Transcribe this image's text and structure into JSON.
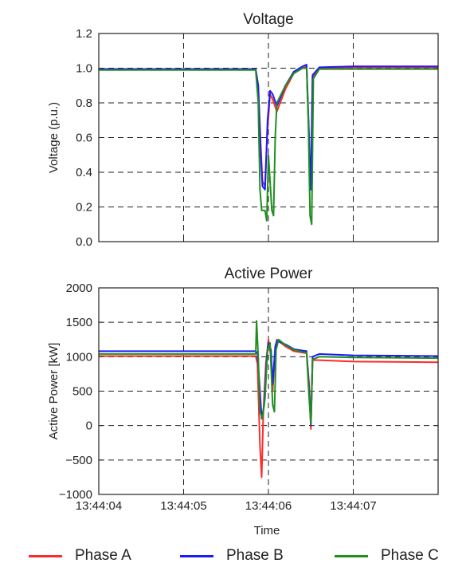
{
  "chart_data": [
    {
      "type": "line",
      "title": "Voltage",
      "xlabel": "",
      "ylabel": "Voltage (p.u.)",
      "ylim": [
        0.0,
        1.2
      ],
      "yticks": [
        "0.0",
        "0.2",
        "0.4",
        "0.6",
        "0.8",
        "1.0",
        "1.2"
      ],
      "xticks": [
        "13:44:04",
        "13:44:05",
        "13:44:06",
        "13:44:07"
      ],
      "grid": true,
      "series": [
        {
          "name": "Phase A",
          "color": "#ff2a2a",
          "points": [
            [
              0.0,
              0.995
            ],
            [
              1.0,
              0.995
            ],
            [
              1.85,
              0.995
            ],
            [
              1.88,
              0.9
            ],
            [
              1.91,
              0.55
            ],
            [
              1.93,
              0.35
            ],
            [
              1.96,
              0.32
            ],
            [
              1.99,
              0.65
            ],
            [
              2.02,
              0.85
            ],
            [
              2.05,
              0.82
            ],
            [
              2.1,
              0.75
            ],
            [
              2.2,
              0.88
            ],
            [
              2.3,
              0.97
            ],
            [
              2.4,
              1.0
            ],
            [
              2.45,
              1.01
            ],
            [
              2.48,
              0.55
            ],
            [
              2.5,
              0.3
            ],
            [
              2.52,
              0.95
            ],
            [
              2.6,
              1.0
            ],
            [
              3.0,
              1.005
            ],
            [
              4.0,
              1.005
            ]
          ]
        },
        {
          "name": "Phase B",
          "color": "#1a1aff",
          "points": [
            [
              0.0,
              0.995
            ],
            [
              1.0,
              0.995
            ],
            [
              1.85,
              0.995
            ],
            [
              1.88,
              0.9
            ],
            [
              1.91,
              0.5
            ],
            [
              1.93,
              0.32
            ],
            [
              1.96,
              0.3
            ],
            [
              1.99,
              0.7
            ],
            [
              2.02,
              0.87
            ],
            [
              2.05,
              0.85
            ],
            [
              2.1,
              0.78
            ],
            [
              2.2,
              0.9
            ],
            [
              2.3,
              0.98
            ],
            [
              2.4,
              1.01
            ],
            [
              2.45,
              1.02
            ],
            [
              2.48,
              0.6
            ],
            [
              2.5,
              0.3
            ],
            [
              2.52,
              0.96
            ],
            [
              2.6,
              1.005
            ],
            [
              3.0,
              1.01
            ],
            [
              4.0,
              1.01
            ]
          ]
        },
        {
          "name": "Phase C",
          "color": "#1f8f1f",
          "points": [
            [
              0.0,
              0.99
            ],
            [
              1.0,
              0.99
            ],
            [
              1.85,
              0.99
            ],
            [
              1.88,
              0.8
            ],
            [
              1.9,
              0.3
            ],
            [
              1.92,
              0.18
            ],
            [
              1.96,
              0.18
            ],
            [
              1.98,
              0.12
            ],
            [
              2.0,
              0.5
            ],
            [
              2.04,
              0.18
            ],
            [
              2.06,
              0.15
            ],
            [
              2.08,
              0.6
            ],
            [
              2.1,
              0.8
            ],
            [
              2.2,
              0.9
            ],
            [
              2.3,
              0.97
            ],
            [
              2.4,
              1.0
            ],
            [
              2.45,
              1.0
            ],
            [
              2.47,
              0.7
            ],
            [
              2.49,
              0.15
            ],
            [
              2.51,
              0.1
            ],
            [
              2.53,
              0.94
            ],
            [
              2.6,
              0.995
            ],
            [
              3.0,
              0.995
            ],
            [
              4.0,
              0.995
            ]
          ]
        }
      ]
    },
    {
      "type": "line",
      "title": "Active Power",
      "xlabel": "Time",
      "ylabel": "Active Power [kW]",
      "ylim": [
        -1000,
        2000
      ],
      "yticks": [
        "−1000",
        "−500",
        "0",
        "500",
        "1000",
        "1500",
        "2000"
      ],
      "xticks": [
        "13:44:04",
        "13:44:05",
        "13:44:06",
        "13:44:07"
      ],
      "grid": true,
      "series": [
        {
          "name": "Phase A",
          "color": "#ff2a2a",
          "points": [
            [
              0.0,
              1010
            ],
            [
              1.0,
              1010
            ],
            [
              1.85,
              1010
            ],
            [
              1.87,
              900
            ],
            [
              1.9,
              -300
            ],
            [
              1.92,
              -750
            ],
            [
              1.94,
              200
            ],
            [
              1.97,
              900
            ],
            [
              2.0,
              1250
            ],
            [
              2.03,
              1000
            ],
            [
              2.05,
              500
            ],
            [
              2.08,
              1100
            ],
            [
              2.1,
              1250
            ],
            [
              2.2,
              1150
            ],
            [
              2.3,
              1080
            ],
            [
              2.4,
              1060
            ],
            [
              2.45,
              1050
            ],
            [
              2.48,
              600
            ],
            [
              2.5,
              -50
            ],
            [
              2.52,
              950
            ],
            [
              2.6,
              950
            ],
            [
              3.0,
              930
            ],
            [
              4.0,
              920
            ]
          ]
        },
        {
          "name": "Phase B",
          "color": "#1a1aff",
          "points": [
            [
              0.0,
              1080
            ],
            [
              1.0,
              1080
            ],
            [
              1.85,
              1080
            ],
            [
              1.87,
              1050
            ],
            [
              1.9,
              500
            ],
            [
              1.92,
              100
            ],
            [
              1.95,
              300
            ],
            [
              1.98,
              1000
            ],
            [
              2.0,
              1200
            ],
            [
              2.03,
              1100
            ],
            [
              2.05,
              600
            ],
            [
              2.08,
              1150
            ],
            [
              2.1,
              1230
            ],
            [
              2.2,
              1180
            ],
            [
              2.3,
              1110
            ],
            [
              2.4,
              1090
            ],
            [
              2.45,
              1080
            ],
            [
              2.48,
              500
            ],
            [
              2.5,
              0
            ],
            [
              2.52,
              1000
            ],
            [
              2.6,
              1040
            ],
            [
              3.0,
              1020
            ],
            [
              4.0,
              1010
            ]
          ]
        },
        {
          "name": "Phase C",
          "color": "#1f8f1f",
          "points": [
            [
              0.0,
              1040
            ],
            [
              1.0,
              1040
            ],
            [
              1.85,
              1040
            ],
            [
              1.86,
              1520
            ],
            [
              1.88,
              1000
            ],
            [
              1.9,
              200
            ],
            [
              1.93,
              100
            ],
            [
              1.96,
              400
            ],
            [
              1.99,
              1100
            ],
            [
              2.02,
              1200
            ],
            [
              2.05,
              300
            ],
            [
              2.07,
              200
            ],
            [
              2.09,
              1100
            ],
            [
              2.12,
              1250
            ],
            [
              2.2,
              1170
            ],
            [
              2.3,
              1100
            ],
            [
              2.4,
              1070
            ],
            [
              2.45,
              1060
            ],
            [
              2.48,
              400
            ],
            [
              2.5,
              20
            ],
            [
              2.52,
              960
            ],
            [
              2.6,
              1000
            ],
            [
              3.0,
              990
            ],
            [
              4.0,
              980
            ]
          ]
        }
      ]
    }
  ],
  "legend": {
    "items": [
      {
        "label": "Phase A",
        "color": "#ff2a2a"
      },
      {
        "label": "Phase B",
        "color": "#1a1aff"
      },
      {
        "label": "Phase C",
        "color": "#1f8f1f"
      }
    ]
  }
}
